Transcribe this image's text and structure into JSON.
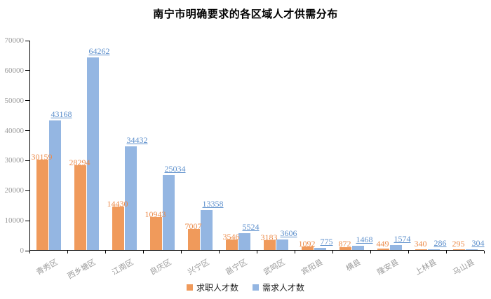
{
  "chart_data": {
    "type": "bar",
    "title": "南宁市明确要求的各区域人才供需分布",
    "categories": [
      "青秀区",
      "西乡塘区",
      "江南区",
      "良庆区",
      "兴宁区",
      "邕宁区",
      "武鸣区",
      "宾阳县",
      "横县",
      "隆安县",
      "上林县",
      "马山县"
    ],
    "series": [
      {
        "name": "求职人才数",
        "color": "#f09a5b",
        "label_color": "#ec8b4a",
        "values": [
          30159,
          28294,
          14430,
          10943,
          7007,
          3546,
          3183,
          1092,
          872,
          449,
          340,
          295
        ]
      },
      {
        "name": "需求人才数",
        "color": "#94b6e2",
        "label_color": "#5e90cc",
        "values": [
          43168,
          64262,
          34432,
          25034,
          13358,
          5524,
          3606,
          775,
          1468,
          1574,
          286,
          304
        ]
      }
    ],
    "xlabel": "",
    "ylabel": "",
    "ylim": [
      0,
      70000
    ],
    "y_ticks": [
      0,
      10000,
      20000,
      30000,
      40000,
      50000,
      60000,
      70000
    ],
    "grid": false,
    "legend_position": "bottom",
    "value_labels": true,
    "background": "#ffffff",
    "axis_color": "#000000",
    "tick_label_color": "#9b9b9b"
  }
}
